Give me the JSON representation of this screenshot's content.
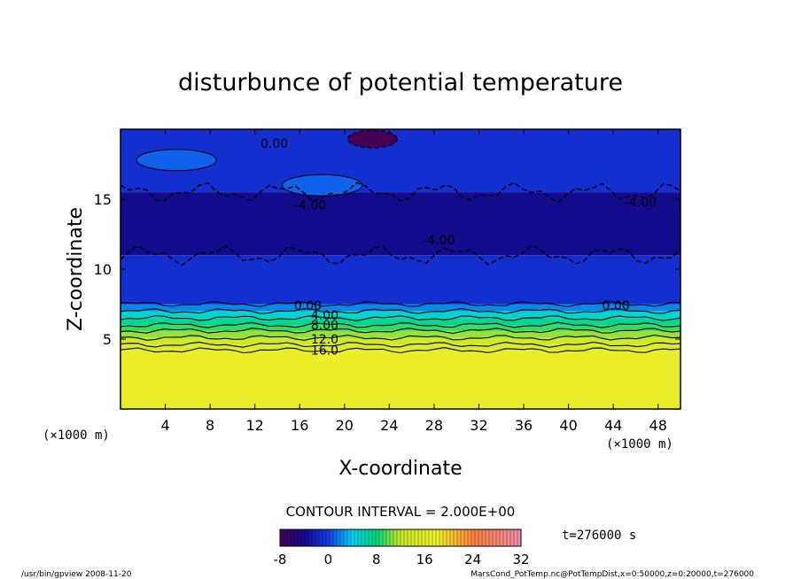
{
  "chart_data": {
    "type": "heatmap",
    "title": "disturbunce of potential temperature",
    "xlabel": "X-coordinate",
    "ylabel": "Z-coordinate",
    "x_unit_left": "(×1000 m)",
    "x_unit_right": "(×1000 m)",
    "xlim": [
      0,
      50
    ],
    "ylim": [
      0,
      20
    ],
    "x_ticks": [
      "4",
      "8",
      "12",
      "16",
      "20",
      "24",
      "28",
      "32",
      "36",
      "40",
      "44",
      "48"
    ],
    "y_ticks": [
      "5",
      "10",
      "15"
    ],
    "contour_interval_text": "CONTOUR INTERVAL = 2.000E+00",
    "time_text": "t=276000 s",
    "colorbar": {
      "range": [
        -8,
        32
      ],
      "ticks": [
        "-8",
        "0",
        "8",
        "16",
        "24",
        "32"
      ]
    },
    "layers": [
      {
        "z_min": 0,
        "z_max": 4.2,
        "value": 17
      },
      {
        "z_min": 4.2,
        "z_max": 4.6,
        "value": 15
      },
      {
        "z_min": 4.6,
        "z_max": 5.1,
        "value": 13
      },
      {
        "z_min": 5.1,
        "z_max": 5.6,
        "value": 11
      },
      {
        "z_min": 5.6,
        "z_max": 6.0,
        "value": 9
      },
      {
        "z_min": 6.0,
        "z_max": 6.5,
        "value": 7
      },
      {
        "z_min": 6.5,
        "z_max": 7.0,
        "value": 5
      },
      {
        "z_min": 7.0,
        "z_max": 7.5,
        "value": 2
      },
      {
        "z_min": 7.5,
        "z_max": 11.0,
        "value": -1
      },
      {
        "z_min": 11.0,
        "z_max": 15.5,
        "value": -4
      },
      {
        "z_min": 15.5,
        "z_max": 20,
        "value": -1
      }
    ],
    "contour_labels": [
      {
        "text": "0.00",
        "x": 12.5,
        "z": 19.0
      },
      {
        "text": "-4.00",
        "x": 15.5,
        "z": 14.6
      },
      {
        "text": "-4.00",
        "x": 27.0,
        "z": 12.1
      },
      {
        "text": "-4.00",
        "x": 45.0,
        "z": 14.8
      },
      {
        "text": "0.00",
        "x": 15.5,
        "z": 7.4
      },
      {
        "text": "0.00",
        "x": 43.0,
        "z": 7.4
      },
      {
        "text": "4.00",
        "x": 17.0,
        "z": 6.7
      },
      {
        "text": "8.00",
        "x": 17.0,
        "z": 6.0
      },
      {
        "text": "12.0",
        "x": 17.0,
        "z": 5.0
      },
      {
        "text": "16.0",
        "x": 17.0,
        "z": 4.2
      }
    ],
    "features": [
      {
        "kind": "minimum",
        "x": 22.5,
        "z": 19.3,
        "value": -8
      },
      {
        "kind": "warm-patch",
        "x": 18.0,
        "z": 16.0,
        "value": 1
      },
      {
        "kind": "warm-patch",
        "x": 5.0,
        "z": 17.8,
        "value": 1
      }
    ]
  },
  "footer": {
    "left": "/usr/bin/gpview   2008-11-20",
    "right": "MarsCond_PotTemp.nc@PotTempDist,x=0:50000,z=0:20000,t=276000"
  }
}
